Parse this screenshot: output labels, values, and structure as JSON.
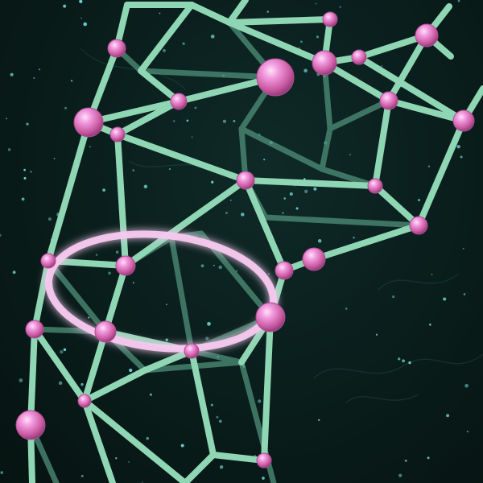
{
  "scene": {
    "subject": "wireframe-molecular-network",
    "background_color": "#0a1f1d",
    "strut_color": "#8fd6b4",
    "strut_back_color": "#4f8f78",
    "node_color": "#e47fd0",
    "node_highlight_color": "#ffd6f3",
    "ring_color": "#f6c9ee",
    "star_color": "#6fd6d6"
  }
}
